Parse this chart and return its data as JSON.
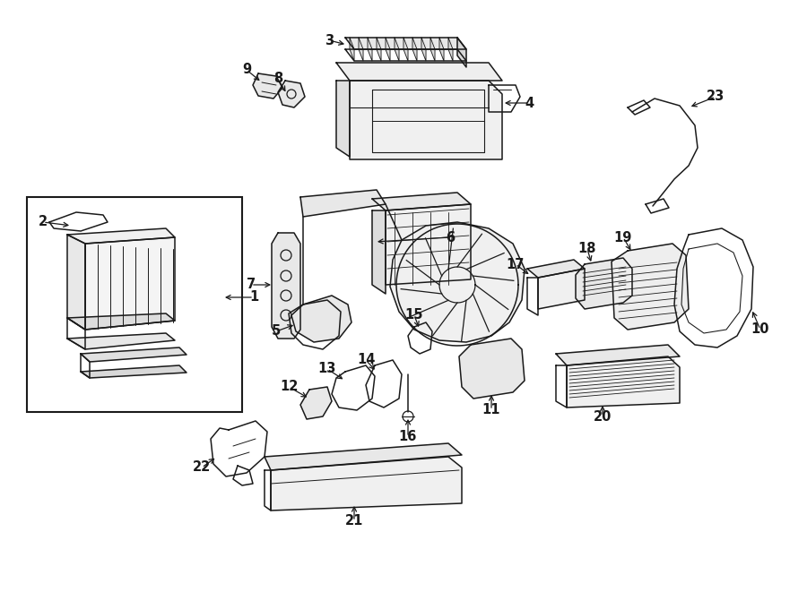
{
  "bg_color": "#ffffff",
  "line_color": "#1a1a1a",
  "lw": 1.1,
  "figsize": [
    9.0,
    6.61
  ],
  "dpi": 100,
  "font_size": 10.5
}
